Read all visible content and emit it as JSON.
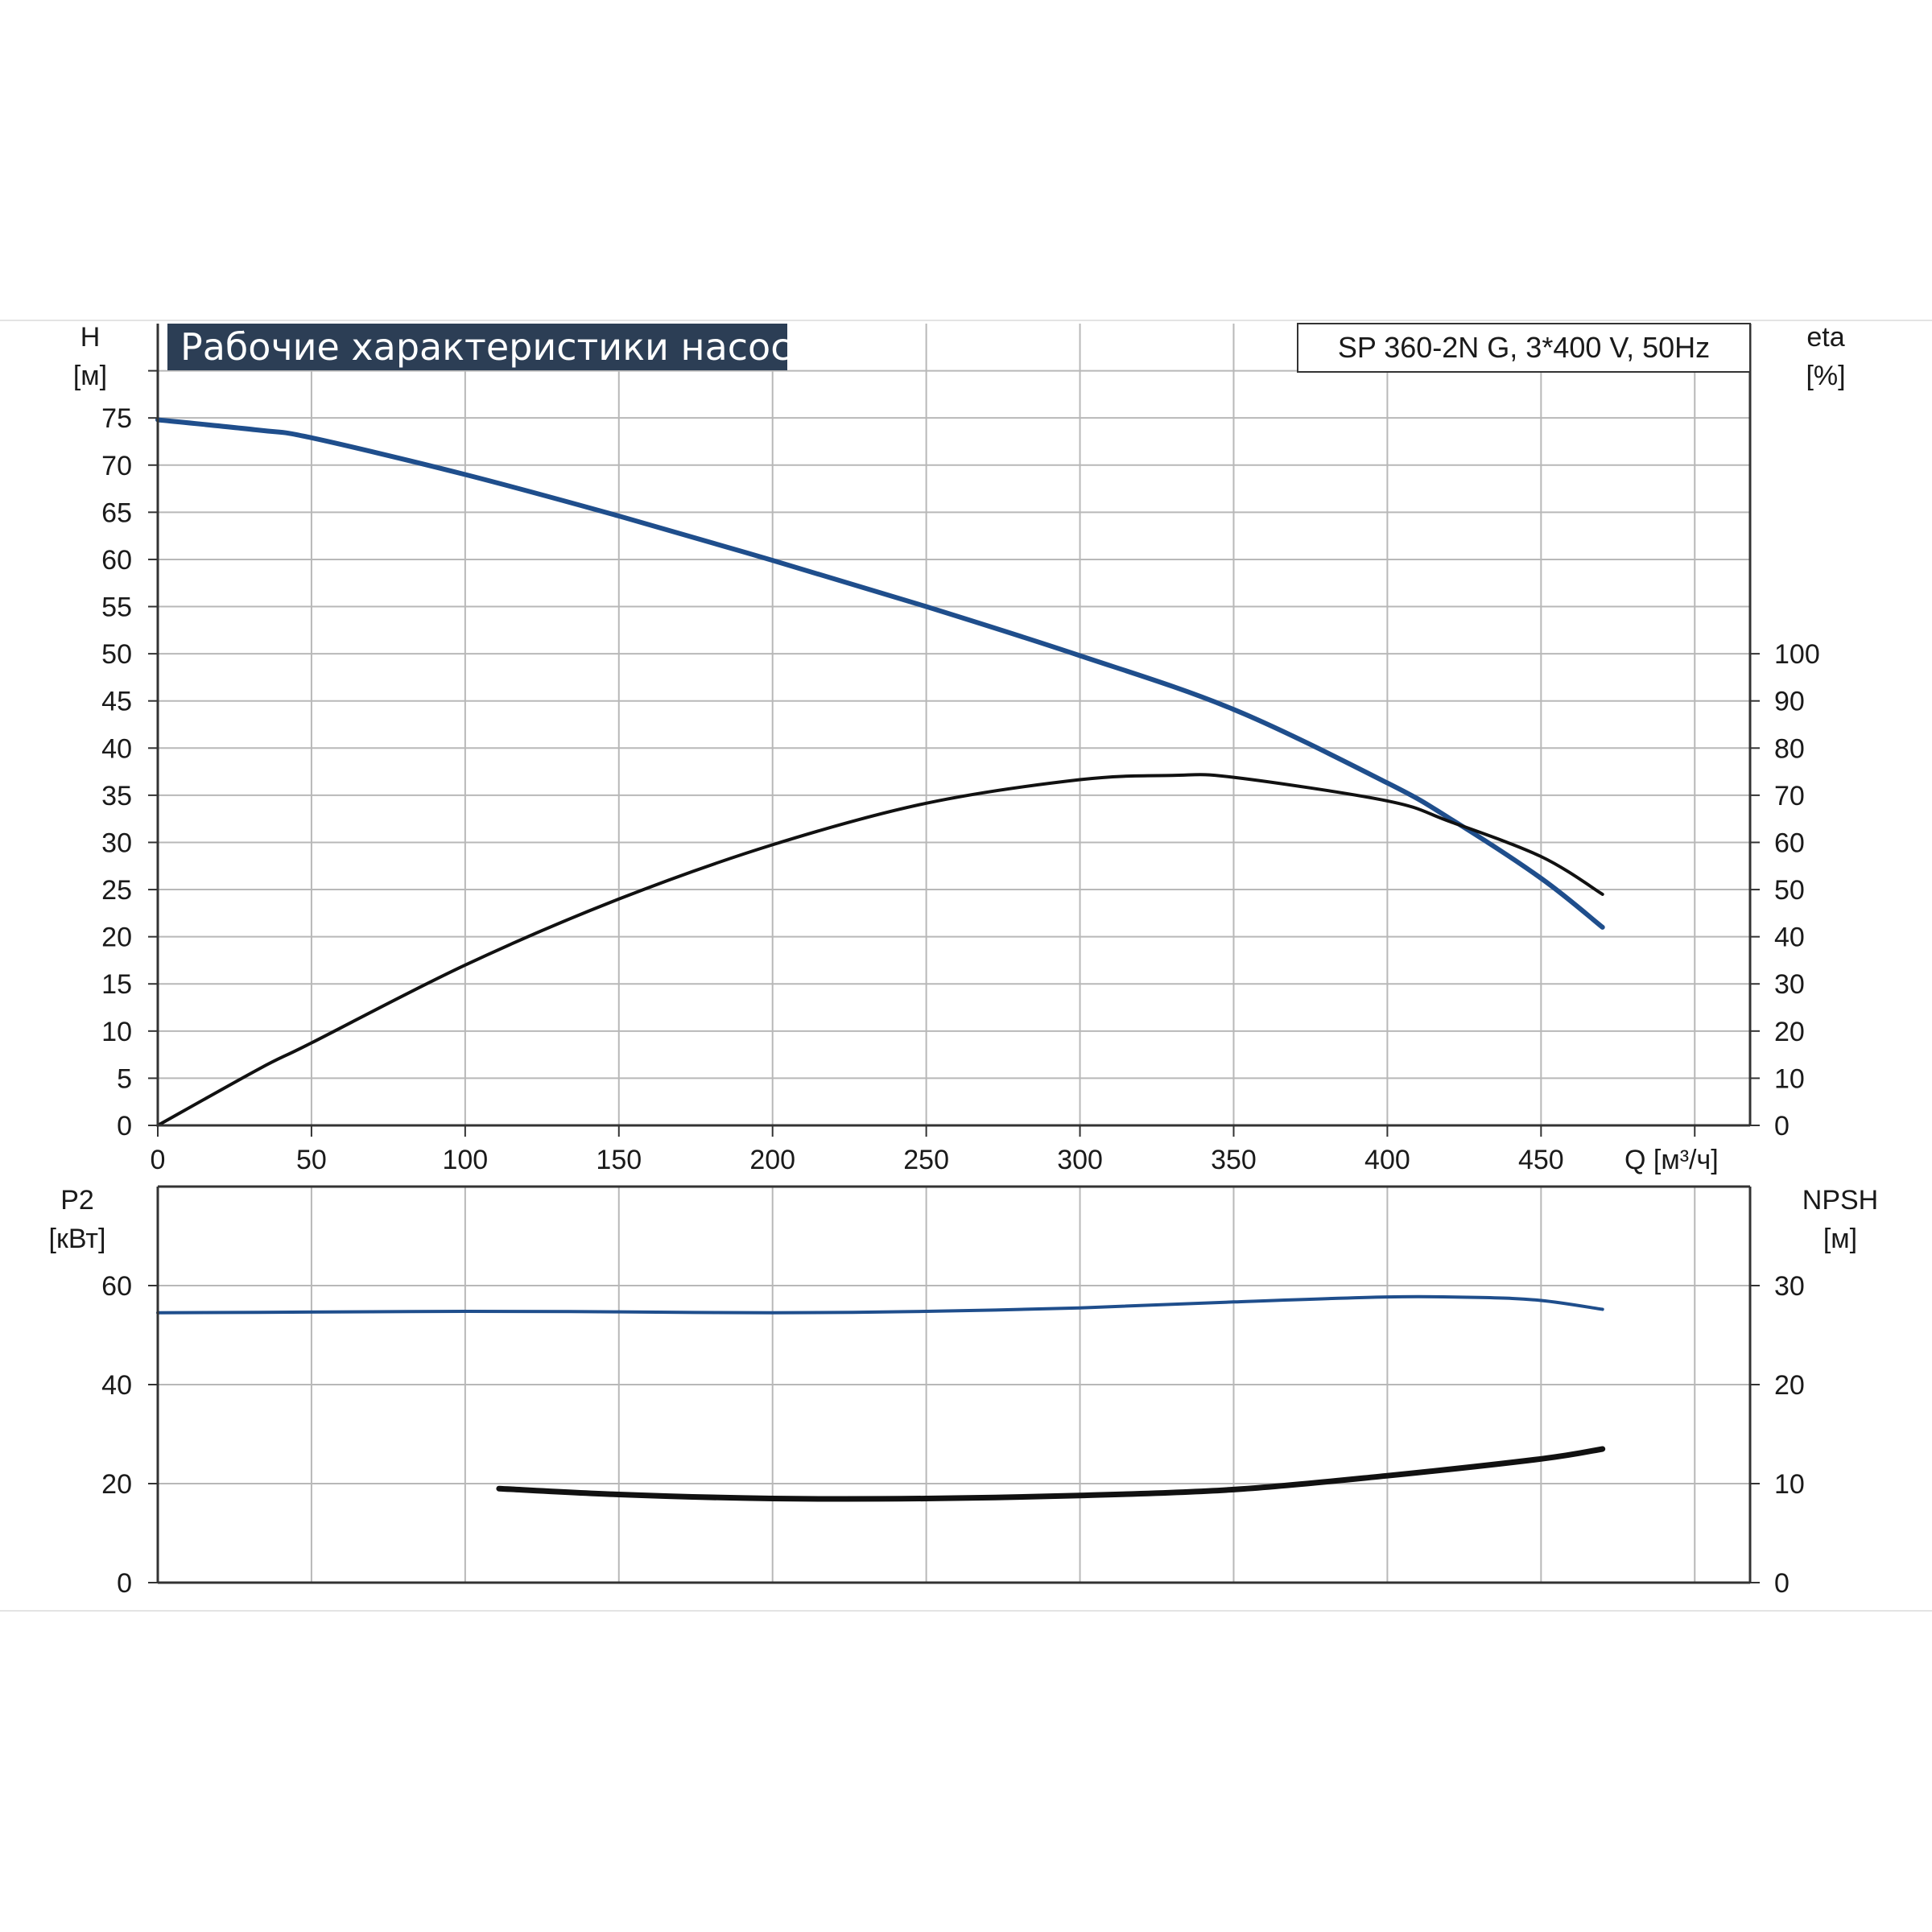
{
  "title": "Рабочие характеристики насоса",
  "model": "SP 360-2N G, 3*400 V, 50Hz",
  "colors": {
    "title_bg": "#2c3e55",
    "blue_curve": "#1f4e8c",
    "black_curve": "#111111",
    "grid": "#b8b8b8",
    "frame": "#333333"
  },
  "chart_data": [
    {
      "id": "upper",
      "type": "line",
      "xlabel": "Q [м³/ч]",
      "x_ticks": [
        0,
        50,
        100,
        150,
        200,
        250,
        300,
        350,
        400,
        450
      ],
      "xlim": [
        0,
        518
      ],
      "y_left": {
        "label_line1": "H",
        "label_line2": "[м]",
        "lim": [
          0,
          85
        ],
        "ticks": [
          0,
          5,
          10,
          15,
          20,
          25,
          30,
          35,
          40,
          45,
          50,
          55,
          60,
          65,
          70,
          75
        ]
      },
      "y_right": {
        "label_line1": "eta",
        "label_line2": "[%]",
        "lim": [
          0,
          170
        ],
        "ticks": [
          0,
          10,
          20,
          30,
          40,
          50,
          60,
          70,
          80,
          90,
          100
        ]
      },
      "grid": true,
      "series": [
        {
          "id": "H",
          "axis": "left",
          "color": "blue",
          "width": 6,
          "x": [
            0,
            33,
            50,
            100,
            150,
            200,
            250,
            300,
            350,
            400,
            420,
            450,
            470
          ],
          "y": [
            74.8,
            73.7,
            72.9,
            69.0,
            64.6,
            59.9,
            55.0,
            49.8,
            44.1,
            36.3,
            32.6,
            26.2,
            21.0
          ]
        },
        {
          "id": "eta",
          "axis": "right",
          "color": "black",
          "width": 4,
          "x": [
            0,
            33,
            50,
            100,
            150,
            200,
            250,
            300,
            330,
            350,
            400,
            420,
            450,
            470
          ],
          "y": [
            0,
            12,
            17.5,
            34,
            48,
            59.5,
            68.3,
            73.3,
            74.2,
            73.8,
            68.8,
            64.5,
            57.0,
            49.0
          ]
        }
      ]
    },
    {
      "id": "lower",
      "type": "line",
      "xlim": [
        0,
        518
      ],
      "y_left": {
        "label_line1": "P2",
        "label_line2": "[кВт]",
        "lim": [
          0,
          80
        ],
        "ticks": [
          0,
          20,
          40,
          60
        ]
      },
      "y_right": {
        "label_line1": "NPSH",
        "label_line2": "[м]",
        "lim": [
          0,
          40
        ],
        "ticks": [
          0,
          10,
          20,
          30
        ]
      },
      "grid": true,
      "series": [
        {
          "id": "P2",
          "axis": "left",
          "color": "blue",
          "width": 4,
          "x": [
            0,
            33,
            100,
            150,
            200,
            250,
            300,
            350,
            400,
            430,
            450,
            470
          ],
          "y": [
            54.5,
            54.6,
            54.8,
            54.7,
            54.5,
            54.8,
            55.5,
            56.7,
            57.7,
            57.6,
            57.0,
            55.2
          ]
        },
        {
          "id": "NPSH",
          "axis": "right",
          "color": "black",
          "width": 7,
          "x": [
            111,
            150,
            200,
            250,
            300,
            350,
            400,
            450,
            470
          ],
          "y": [
            9.5,
            8.9,
            8.5,
            8.5,
            8.8,
            9.4,
            10.8,
            12.5,
            13.5
          ]
        }
      ]
    }
  ]
}
